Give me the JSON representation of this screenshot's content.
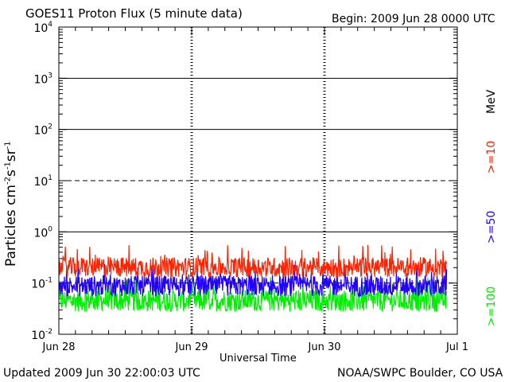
{
  "header": {
    "title": "GOES11 Proton Flux (5 minute data)",
    "begin": "Begin: 2009 Jun 28 0000 UTC"
  },
  "footer": {
    "updated": "Updated 2009 Jun 30 22:00:03 UTC",
    "credit": "NOAA/SWPC Boulder, CO USA"
  },
  "chart_data": {
    "type": "line",
    "title": "GOES11 Proton Flux (5 minute data)",
    "xlabel": "Universal Time",
    "ylabel_parts": [
      "Particles cm",
      "-2",
      "s",
      "-1",
      "sr",
      "-1"
    ],
    "unit_label": "MeV",
    "y_scale": "log",
    "ylim": [
      0.01,
      10000
    ],
    "yticks": [
      {
        "base": "10",
        "exp": "4"
      },
      {
        "base": "10",
        "exp": "3"
      },
      {
        "base": "10",
        "exp": "2"
      },
      {
        "base": "10",
        "exp": "1"
      },
      {
        "base": "10",
        "exp": "0"
      },
      {
        "base": "10",
        "exp": "-1"
      },
      {
        "base": "10",
        "exp": "-2"
      }
    ],
    "x_range_days": [
      0,
      3
    ],
    "xticks": [
      "Jun 28",
      "Jun 29",
      "Jun 30",
      "Jul 1"
    ],
    "data_end_day": 2.92,
    "reference_lines": [
      {
        "value": 1000,
        "style": "solid"
      },
      {
        "value": 100,
        "style": "solid"
      },
      {
        "value": 10,
        "style": "dashed"
      },
      {
        "value": 1,
        "style": "solid"
      },
      {
        "value": 0.1,
        "style": "dashed"
      }
    ],
    "series": [
      {
        "name": ">=10",
        "color": "#ff2200",
        "typical_low": 0.13,
        "typical_high": 0.32
      },
      {
        "name": ">=50",
        "color": "#2200ff",
        "typical_low": 0.055,
        "typical_high": 0.14
      },
      {
        "name": ">=100",
        "color": "#00ee00",
        "typical_low": 0.028,
        "typical_high": 0.075
      }
    ]
  }
}
